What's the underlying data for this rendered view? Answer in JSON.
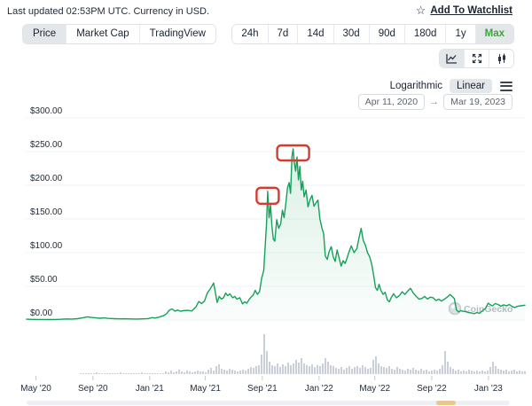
{
  "header": {
    "last_updated": "Last updated 02:53PM UTC. Currency in USD.",
    "watchlist_label": "Add To Watchlist",
    "star_icon": "☆"
  },
  "tabs": {
    "items": [
      {
        "label": "Price",
        "selected": true
      },
      {
        "label": "Market Cap",
        "selected": false
      },
      {
        "label": "TradingView",
        "selected": false
      }
    ]
  },
  "ranges": {
    "items": [
      {
        "label": "24h",
        "selected": false
      },
      {
        "label": "7d",
        "selected": false
      },
      {
        "label": "14d",
        "selected": false
      },
      {
        "label": "30d",
        "selected": false
      },
      {
        "label": "90d",
        "selected": false
      },
      {
        "label": "180d",
        "selected": false
      },
      {
        "label": "1y",
        "selected": false
      },
      {
        "label": "Max",
        "selected": true
      }
    ]
  },
  "chart_tools": {
    "icons": [
      {
        "name": "line-chart-icon",
        "selected": true
      },
      {
        "name": "fullscreen-icon",
        "selected": false
      },
      {
        "name": "candlestick-icon",
        "selected": false
      }
    ]
  },
  "scale": {
    "options": [
      {
        "label": "Logarithmic",
        "selected": false
      },
      {
        "label": "Linear",
        "selected": true
      }
    ]
  },
  "date_range": {
    "start": "Apr 11, 2020",
    "end": "Mar 19, 2023",
    "arrow": "→"
  },
  "watermark": {
    "label": "CoinGecko"
  },
  "colors": {
    "line_green": "#16a15a",
    "area_green": "#1aa05c",
    "annotation_red": "#d93a30",
    "max_green": "#3fa23f",
    "volume_gray": "#c9d0da",
    "grid_gray": "#f1f3f5",
    "axis_text": "#232c3a",
    "watermark_gray": "#a8aeb6"
  },
  "chart_data": {
    "type": "area",
    "title": "Price (USD), Apr 11 2020 – Mar 19 2023",
    "x_axis": {
      "unit": "months since Apr 11, 2020",
      "labels": [
        {
          "label": "May '20",
          "m": 0.66
        },
        {
          "label": "Sep '20",
          "m": 4.7
        },
        {
          "label": "Jan '21",
          "m": 8.72
        },
        {
          "label": "May '21",
          "m": 12.66
        },
        {
          "label": "Sep '21",
          "m": 16.7
        },
        {
          "label": "Jan '22",
          "m": 20.72
        },
        {
          "label": "May '22",
          "m": 24.67
        },
        {
          "label": "Sep '22",
          "m": 28.7
        },
        {
          "label": "Jan '23",
          "m": 32.72
        }
      ]
    },
    "y_axis": {
      "min": 0,
      "max": 300,
      "tick_step": 50,
      "ticks": [
        0,
        50,
        100,
        150,
        200,
        250,
        300
      ],
      "labels": [
        "$0.00",
        "$50.00",
        "$100.00",
        "$150.00",
        "$200.00",
        "$250.00",
        "$300.00"
      ]
    },
    "series": [
      {
        "name": "Price",
        "points": [
          [
            0,
            1.2
          ],
          [
            0.4,
            0.9
          ],
          [
            0.8,
            0.75
          ],
          [
            1.2,
            0.8
          ],
          [
            1.6,
            0.7
          ],
          [
            2,
            0.85
          ],
          [
            2.4,
            1
          ],
          [
            2.8,
            1.6
          ],
          [
            3.2,
            1.4
          ],
          [
            3.6,
            2
          ],
          [
            4,
            3.4
          ],
          [
            4.3,
            4.7
          ],
          [
            4.6,
            3.8
          ],
          [
            4.9,
            3.2
          ],
          [
            5.2,
            2.6
          ],
          [
            5.5,
            3.1
          ],
          [
            5.8,
            2.4
          ],
          [
            6.2,
            2
          ],
          [
            6.6,
            1.7
          ],
          [
            7,
            1.9
          ],
          [
            7.4,
            1.6
          ],
          [
            7.8,
            1.5
          ],
          [
            8.2,
            1.7
          ],
          [
            8.6,
            2.1
          ],
          [
            8.9,
            3.6
          ],
          [
            9.1,
            2.9
          ],
          [
            9.4,
            4.4
          ],
          [
            9.7,
            6.5
          ],
          [
            9.9,
            9
          ],
          [
            10.1,
            14.5
          ],
          [
            10.3,
            16.5
          ],
          [
            10.5,
            13.2
          ],
          [
            10.7,
            14.8
          ],
          [
            10.9,
            13
          ],
          [
            11.1,
            13.8
          ],
          [
            11.4,
            14.3
          ],
          [
            11.7,
            13.4
          ],
          [
            12,
            19.5
          ],
          [
            12.2,
            27.5
          ],
          [
            12.4,
            24.5
          ],
          [
            12.6,
            28
          ],
          [
            12.8,
            40
          ],
          [
            13,
            46
          ],
          [
            13.15,
            51
          ],
          [
            13.25,
            55
          ],
          [
            13.35,
            44
          ],
          [
            13.5,
            26
          ],
          [
            13.65,
            35
          ],
          [
            13.8,
            31
          ],
          [
            13.95,
            33
          ],
          [
            14.1,
            40
          ],
          [
            14.25,
            36
          ],
          [
            14.4,
            39
          ],
          [
            14.6,
            33
          ],
          [
            14.75,
            35
          ],
          [
            14.9,
            31
          ],
          [
            15.1,
            33
          ],
          [
            15.3,
            24
          ],
          [
            15.45,
            27
          ],
          [
            15.6,
            25
          ],
          [
            15.75,
            30
          ],
          [
            15.9,
            34
          ],
          [
            16.05,
            37
          ],
          [
            16.2,
            44
          ],
          [
            16.35,
            38
          ],
          [
            16.5,
            42
          ],
          [
            16.65,
            62
          ],
          [
            16.8,
            74
          ],
          [
            16.9,
            108
          ],
          [
            17,
            143
          ],
          [
            17.08,
            191
          ],
          [
            17.18,
            152
          ],
          [
            17.28,
            171
          ],
          [
            17.38,
            139
          ],
          [
            17.48,
            120
          ],
          [
            17.58,
            117
          ],
          [
            17.72,
            149
          ],
          [
            17.86,
            136
          ],
          [
            18,
            143
          ],
          [
            18.12,
            163
          ],
          [
            18.24,
            152
          ],
          [
            18.36,
            172
          ],
          [
            18.48,
            196
          ],
          [
            18.6,
            204
          ],
          [
            18.7,
            188
          ],
          [
            18.8,
            243
          ],
          [
            18.88,
            254
          ],
          [
            18.96,
            235
          ],
          [
            19.06,
            221
          ],
          [
            19.16,
            242
          ],
          [
            19.26,
            208
          ],
          [
            19.36,
            228
          ],
          [
            19.46,
            193
          ],
          [
            19.56,
            206
          ],
          [
            19.66,
            183
          ],
          [
            19.8,
            193
          ],
          [
            19.94,
            168
          ],
          [
            20.08,
            179
          ],
          [
            20.22,
            185
          ],
          [
            20.36,
            169
          ],
          [
            20.5,
            174
          ],
          [
            20.64,
            178
          ],
          [
            20.78,
            150
          ],
          [
            20.92,
            137
          ],
          [
            21.04,
            128
          ],
          [
            21.16,
            95
          ],
          [
            21.3,
            90
          ],
          [
            21.44,
            102
          ],
          [
            21.58,
            109
          ],
          [
            21.72,
            94
          ],
          [
            21.86,
            87
          ],
          [
            22,
            104
          ],
          [
            22.14,
            92
          ],
          [
            22.28,
            80
          ],
          [
            22.42,
            88
          ],
          [
            22.56,
            84
          ],
          [
            22.7,
            92
          ],
          [
            22.84,
            101
          ],
          [
            23,
            110
          ],
          [
            23.2,
            100
          ],
          [
            23.4,
            106
          ],
          [
            23.55,
            122
          ],
          [
            23.7,
            136
          ],
          [
            23.85,
            118
          ],
          [
            24,
            111
          ],
          [
            24.15,
            100
          ],
          [
            24.3,
            94
          ],
          [
            24.45,
            83
          ],
          [
            24.6,
            65
          ],
          [
            24.72,
            48
          ],
          [
            24.85,
            44
          ],
          [
            24.97,
            53
          ],
          [
            25.1,
            44
          ],
          [
            25.25,
            38
          ],
          [
            25.4,
            41
          ],
          [
            25.55,
            30
          ],
          [
            25.7,
            27
          ],
          [
            25.85,
            34
          ],
          [
            26,
            39
          ],
          [
            26.2,
            33
          ],
          [
            26.4,
            36
          ],
          [
            26.6,
            42
          ],
          [
            26.8,
            38
          ],
          [
            27,
            43
          ],
          [
            27.2,
            47
          ],
          [
            27.4,
            40
          ],
          [
            27.6,
            35
          ],
          [
            27.8,
            31
          ],
          [
            28,
            32
          ],
          [
            28.2,
            35
          ],
          [
            28.4,
            31
          ],
          [
            28.6,
            34
          ],
          [
            28.8,
            33
          ],
          [
            29,
            29
          ],
          [
            29.2,
            31
          ],
          [
            29.4,
            28
          ],
          [
            29.6,
            31
          ],
          [
            29.8,
            34
          ],
          [
            30,
            38
          ],
          [
            30.15,
            35
          ],
          [
            30.3,
            32
          ],
          [
            30.45,
            15
          ],
          [
            30.6,
            12
          ],
          [
            30.75,
            14
          ],
          [
            30.9,
            13
          ],
          [
            31.1,
            12.5
          ],
          [
            31.3,
            11
          ],
          [
            31.5,
            10.5
          ],
          [
            31.7,
            9.5
          ],
          [
            31.9,
            11
          ],
          [
            32.1,
            10
          ],
          [
            32.3,
            14
          ],
          [
            32.5,
            17
          ],
          [
            32.7,
            25
          ],
          [
            32.85,
            22.5
          ],
          [
            33,
            21
          ],
          [
            33.2,
            24.5
          ],
          [
            33.4,
            23
          ],
          [
            33.6,
            20.5
          ],
          [
            33.8,
            22.5
          ],
          [
            34,
            21
          ],
          [
            34.2,
            23
          ],
          [
            34.4,
            20
          ],
          [
            34.6,
            18.5
          ],
          [
            34.8,
            20.5
          ],
          [
            35,
            21
          ],
          [
            35.3,
            22
          ]
        ]
      }
    ],
    "annotations": [
      {
        "name": "sep-2021-peak-box",
        "m": 17.08,
        "price": 191,
        "w": 25,
        "h": 18
      },
      {
        "name": "nov-2021-ath-box",
        "m": 18.88,
        "price": 254,
        "w": 36,
        "h": 17
      }
    ],
    "volume": {
      "x0": 90,
      "step": 3,
      "heights": [
        1,
        1,
        1,
        1,
        1,
        1,
        2,
        1,
        1,
        1,
        1,
        1,
        1,
        1,
        1,
        2,
        1,
        1,
        1,
        1,
        1,
        1,
        1,
        2,
        1,
        1,
        1,
        1,
        1,
        1,
        1,
        1,
        3,
        2,
        4,
        2,
        3,
        5,
        3,
        2,
        4,
        3,
        2,
        3,
        4,
        3,
        3,
        2,
        5,
        7,
        4,
        9,
        11,
        6,
        5,
        4,
        6,
        5,
        4,
        3,
        4,
        5,
        4,
        6,
        8,
        7,
        9,
        10,
        22,
        45,
        26,
        14,
        10,
        9,
        12,
        8,
        11,
        9,
        13,
        10,
        12,
        16,
        13,
        18,
        12,
        10,
        9,
        11,
        8,
        10,
        9,
        12,
        18,
        14,
        10,
        9,
        7,
        6,
        8,
        5,
        7,
        9,
        6,
        8,
        9,
        7,
        10,
        8,
        6,
        7,
        16,
        20,
        12,
        9,
        8,
        7,
        9,
        6,
        5,
        8,
        6,
        5,
        4,
        6,
        5,
        7,
        5,
        4,
        6,
        4,
        5,
        3,
        4,
        5,
        4,
        6,
        10,
        26,
        14,
        8,
        6,
        4,
        5,
        3,
        4,
        3,
        5,
        4,
        3,
        4,
        3,
        4,
        3,
        4,
        8,
        14,
        9,
        6,
        5,
        4,
        5,
        3,
        4,
        5,
        3,
        4,
        3,
        3
      ]
    }
  }
}
